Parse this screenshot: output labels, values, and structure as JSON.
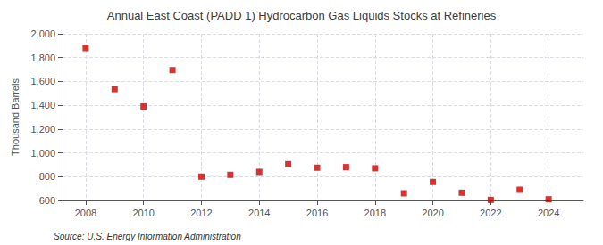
{
  "chart_data": {
    "type": "scatter",
    "title": "Annual East Coast (PADD 1) Hydrocarbon Gas Liquids Stocks at Refineries",
    "ylabel": "Thousand Barrels",
    "annotations": [
      "Source: U.S. Energy Information Administration"
    ],
    "x": [
      2008,
      2009,
      2010,
      2011,
      2012,
      2013,
      2014,
      2015,
      2016,
      2017,
      2018,
      2019,
      2020,
      2021,
      2022,
      2023,
      2024
    ],
    "values": [
      1880,
      1535,
      1390,
      1695,
      800,
      815,
      840,
      905,
      875,
      880,
      870,
      660,
      755,
      665,
      605,
      690,
      610
    ],
    "color": "#cc0000",
    "marker": "square",
    "xlim": [
      2007.2,
      2025.2
    ],
    "xticks": [
      2008,
      2010,
      2012,
      2014,
      2016,
      2018,
      2020,
      2022,
      2024
    ],
    "ylim": [
      600,
      2000
    ],
    "yticks": [
      600,
      800,
      {
        "value": 1000,
        "label": "1,000"
      },
      {
        "value": 1200,
        "label": "1,200"
      },
      {
        "value": 1400,
        "label": "1,400"
      },
      {
        "value": 1600,
        "label": "1,600"
      },
      {
        "value": 1800,
        "label": "1,800"
      },
      {
        "value": 2000,
        "label": "2,000"
      }
    ],
    "grid": true
  }
}
